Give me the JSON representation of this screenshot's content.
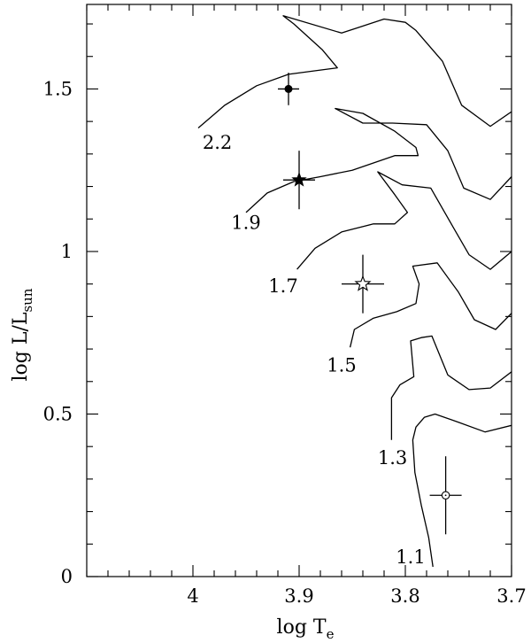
{
  "chart_data": {
    "type": "line",
    "title": "",
    "xlabel": {
      "main": "log T",
      "sub": "e"
    },
    "ylabel": {
      "main": "log L/L",
      "sub": "sun"
    },
    "xlim": [
      4.1,
      3.7
    ],
    "ylim": [
      0,
      1.76
    ],
    "x_ticks": [
      4,
      3.9,
      3.8,
      3.7
    ],
    "x_tick_labels": [
      "4",
      "3.9",
      "3.8",
      "3.7"
    ],
    "x_minor_step": 0.02,
    "y_ticks": [
      0,
      0.5,
      1,
      1.5
    ],
    "y_tick_labels": [
      "0",
      "0.5",
      "1",
      "1.5"
    ],
    "y_minor_step": 0.1,
    "grid": false,
    "legend": "none",
    "series": [
      {
        "name": "2.2",
        "label_at": [
          3.977,
          1.335
        ],
        "x": [
          3.995,
          3.97,
          3.94,
          3.91,
          3.88,
          3.864,
          3.878,
          3.905,
          3.915,
          3.86,
          3.845,
          3.82,
          3.8,
          3.79,
          3.765,
          3.747,
          3.72,
          3.7
        ],
        "y": [
          1.38,
          1.45,
          1.51,
          1.545,
          1.558,
          1.565,
          1.62,
          1.7,
          1.725,
          1.672,
          1.688,
          1.715,
          1.705,
          1.68,
          1.585,
          1.45,
          1.385,
          1.43
        ]
      },
      {
        "name": "1.9",
        "label_at": [
          3.95,
          1.088
        ],
        "x": [
          3.95,
          3.93,
          3.905,
          3.88,
          3.85,
          3.81,
          3.788,
          3.79,
          3.81,
          3.84,
          3.866,
          3.84,
          3.812,
          3.78,
          3.76,
          3.745,
          3.72,
          3.7
        ],
        "y": [
          1.12,
          1.18,
          1.215,
          1.23,
          1.25,
          1.295,
          1.295,
          1.32,
          1.37,
          1.425,
          1.44,
          1.395,
          1.395,
          1.39,
          1.31,
          1.195,
          1.16,
          1.23
        ]
      },
      {
        "name": "1.7",
        "label_at": [
          3.915,
          0.893
        ],
        "x": [
          3.902,
          3.885,
          3.86,
          3.83,
          3.81,
          3.798,
          3.81,
          3.826,
          3.803,
          3.776,
          3.755,
          3.74,
          3.72,
          3.7
        ],
        "y": [
          0.945,
          1.01,
          1.06,
          1.085,
          1.085,
          1.12,
          1.175,
          1.245,
          1.205,
          1.195,
          1.075,
          0.99,
          0.945,
          1.0
        ]
      },
      {
        "name": "1.5",
        "label_at": [
          3.86,
          0.65
        ],
        "x": [
          3.852,
          3.848,
          3.83,
          3.808,
          3.79,
          3.787,
          3.793,
          3.77,
          3.75,
          3.735,
          3.715,
          3.7
        ],
        "y": [
          0.705,
          0.76,
          0.795,
          0.815,
          0.84,
          0.9,
          0.955,
          0.965,
          0.875,
          0.79,
          0.76,
          0.81
        ]
      },
      {
        "name": "1.3",
        "label_at": [
          3.812,
          0.365
        ],
        "x": [
          3.813,
          3.813,
          3.805,
          3.792,
          3.795,
          3.785,
          3.775,
          3.76,
          3.74,
          3.72,
          3.7
        ],
        "y": [
          0.42,
          0.55,
          0.59,
          0.615,
          0.725,
          0.735,
          0.74,
          0.62,
          0.575,
          0.58,
          0.63
        ]
      },
      {
        "name": "1.1",
        "label_at": [
          3.795,
          0.06
        ],
        "x": [
          3.774,
          3.778,
          3.785,
          3.791,
          3.793,
          3.79,
          3.782,
          3.772,
          3.75,
          3.725,
          3.7
        ],
        "y": [
          0.03,
          0.12,
          0.22,
          0.32,
          0.42,
          0.46,
          0.49,
          0.5,
          0.475,
          0.445,
          0.465
        ]
      }
    ],
    "stars": [
      {
        "name": "filled-circle-star",
        "symbol": "filled-circle",
        "x": 3.91,
        "y": 1.5,
        "x_err": 0.01,
        "y_err": 0.05
      },
      {
        "name": "filled-star-star",
        "symbol": "filled-star",
        "x": 3.9,
        "y": 1.22,
        "x_err": 0.015,
        "y_err": 0.09
      },
      {
        "name": "open-star-star",
        "symbol": "open-star",
        "x": 3.84,
        "y": 0.9,
        "x_err": 0.02,
        "y_err": 0.09
      },
      {
        "name": "sun-symbol-star",
        "symbol": "sun",
        "x": 3.762,
        "y": 0.25,
        "x_err": 0.015,
        "y_err": 0.12
      }
    ]
  }
}
